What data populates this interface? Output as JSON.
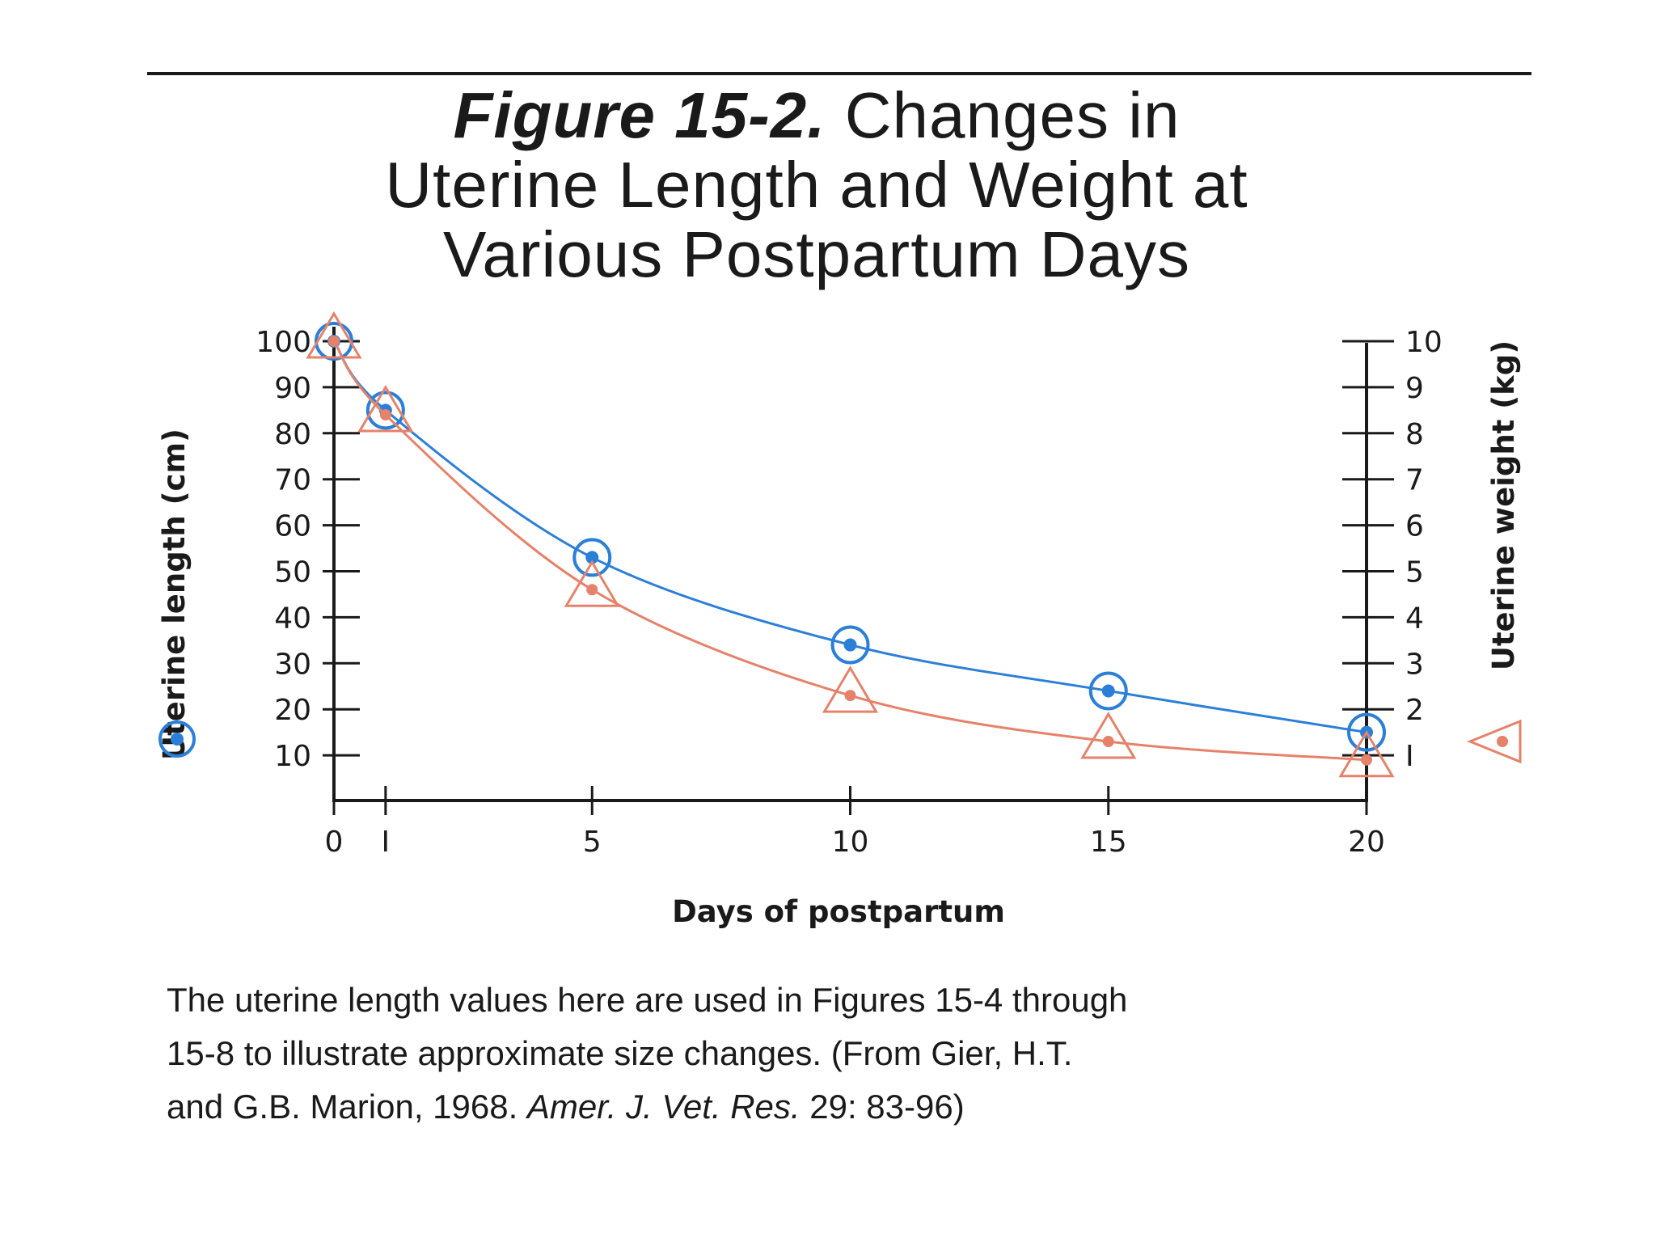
{
  "figure": {
    "label": "Figure 15-2.",
    "title_line1": "Changes in",
    "title_line2": "Uterine Length and Weight at",
    "title_line3": "Various Postpartum Days"
  },
  "caption": {
    "line1": "The uterine length values  here are used in Figures 15-4 through",
    "line2": "15-8 to illustrate approximate size changes.  (From Gier, H.T.",
    "line3_pre": "and G.B. Marion, 1968. ",
    "line3_journal": "Amer. J. Vet. Res.",
    "line3_post": " 29: 83-96)"
  },
  "chart_data": {
    "type": "line",
    "xlabel": "Days of postpartum",
    "ylabel_left": "Uterine length (cm)",
    "ylabel_right": "Uterine weight (kg)",
    "x_ticks": [
      0,
      1,
      5,
      10,
      15,
      20
    ],
    "x_tick_labels": [
      "0",
      "I",
      "5",
      "10",
      "15",
      "20"
    ],
    "xlim": [
      0,
      20
    ],
    "y_left_ticks": [
      10,
      20,
      30,
      40,
      50,
      60,
      70,
      80,
      90,
      100
    ],
    "y_left_tick_labels": [
      "10",
      "20",
      "30",
      "40",
      "50",
      "60",
      "70",
      "80",
      "90",
      "100"
    ],
    "ylim_left": [
      0,
      100
    ],
    "y_right_ticks": [
      1,
      2,
      3,
      4,
      5,
      6,
      7,
      8,
      9,
      10
    ],
    "y_right_tick_labels": [
      "I",
      "2",
      "3",
      "4",
      "5",
      "6",
      "7",
      "8",
      "9",
      "10"
    ],
    "ylim_right": [
      0,
      10
    ],
    "grid": false,
    "series": [
      {
        "name": "Uterine length (cm)",
        "axis": "left",
        "marker": "circle",
        "color": "#2b7fd8",
        "x": [
          0,
          1,
          5,
          10,
          15,
          20
        ],
        "y": [
          100,
          85,
          53,
          34,
          24,
          15
        ]
      },
      {
        "name": "Uterine weight (kg)",
        "axis": "right",
        "marker": "triangle",
        "color": "#e6826a",
        "x": [
          0,
          1,
          5,
          10,
          15,
          20
        ],
        "y": [
          10,
          8.4,
          4.6,
          2.3,
          1.3,
          0.9
        ]
      }
    ]
  }
}
